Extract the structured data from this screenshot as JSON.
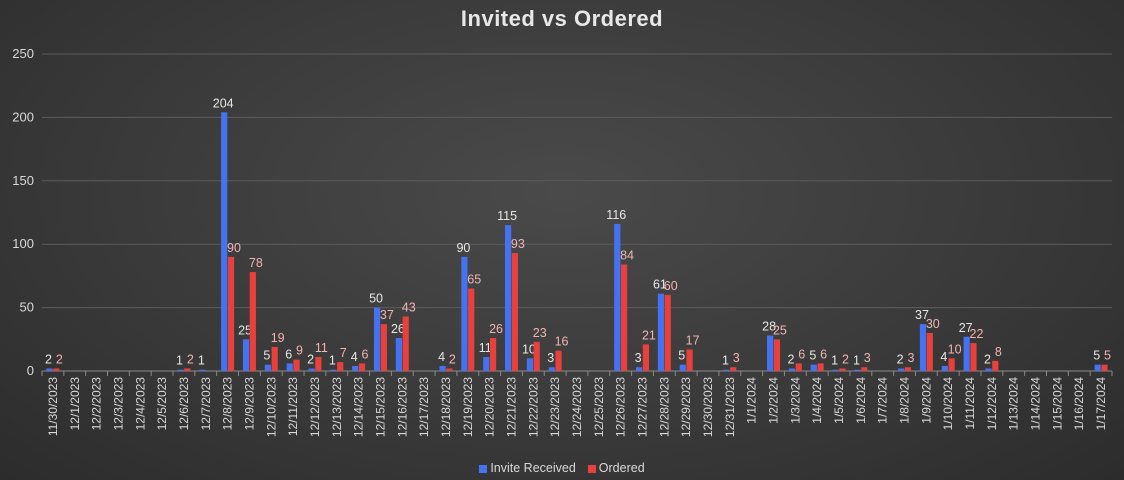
{
  "chart_data": {
    "type": "bar",
    "title": "Invited vs Ordered",
    "ylim": [
      0,
      250
    ],
    "yticks": [
      0,
      50,
      100,
      150,
      200,
      250
    ],
    "grid": true,
    "legend_position": "bottom",
    "categories": [
      "11/30/2023",
      "12/1/2023",
      "12/2/2023",
      "12/3/2023",
      "12/4/2023",
      "12/5/2023",
      "12/6/2023",
      "12/7/2023",
      "12/8/2023",
      "12/9/2023",
      "12/10/2023",
      "12/11/2023",
      "12/12/2023",
      "12/13/2023",
      "12/14/2023",
      "12/15/2023",
      "12/16/2023",
      "12/17/2023",
      "12/18/2023",
      "12/19/2023",
      "12/20/2023",
      "12/21/2023",
      "12/22/2023",
      "12/23/2023",
      "12/24/2023",
      "12/25/2023",
      "12/26/2023",
      "12/27/2023",
      "12/28/2023",
      "12/29/2023",
      "12/30/2023",
      "12/31/2023",
      "1/1/2024",
      "1/2/2024",
      "1/3/2024",
      "1/4/2024",
      "1/5/2024",
      "1/6/2024",
      "1/7/2024",
      "1/8/2024",
      "1/9/2024",
      "1/10/2024",
      "1/11/2024",
      "1/12/2024",
      "1/13/2024",
      "1/14/2024",
      "1/15/2024",
      "1/16/2024",
      "1/17/2024"
    ],
    "series": [
      {
        "name": "Invite Received",
        "color": "#4472f0",
        "values": [
          2,
          null,
          null,
          null,
          null,
          null,
          1,
          1,
          204,
          25,
          5,
          6,
          2,
          1,
          4,
          50,
          26,
          null,
          4,
          90,
          11,
          115,
          10,
          3,
          null,
          null,
          116,
          3,
          61,
          5,
          null,
          1,
          null,
          28,
          2,
          5,
          1,
          1,
          null,
          2,
          37,
          4,
          27,
          2,
          null,
          null,
          null,
          null,
          5
        ]
      },
      {
        "name": "Ordered",
        "color": "#e8403c",
        "values": [
          2,
          null,
          null,
          null,
          null,
          null,
          2,
          null,
          90,
          78,
          19,
          9,
          11,
          7,
          6,
          37,
          43,
          null,
          2,
          65,
          26,
          93,
          23,
          16,
          null,
          null,
          84,
          21,
          60,
          17,
          null,
          3,
          null,
          25,
          6,
          6,
          2,
          3,
          null,
          3,
          30,
          10,
          22,
          8,
          null,
          null,
          null,
          null,
          5
        ]
      }
    ]
  }
}
